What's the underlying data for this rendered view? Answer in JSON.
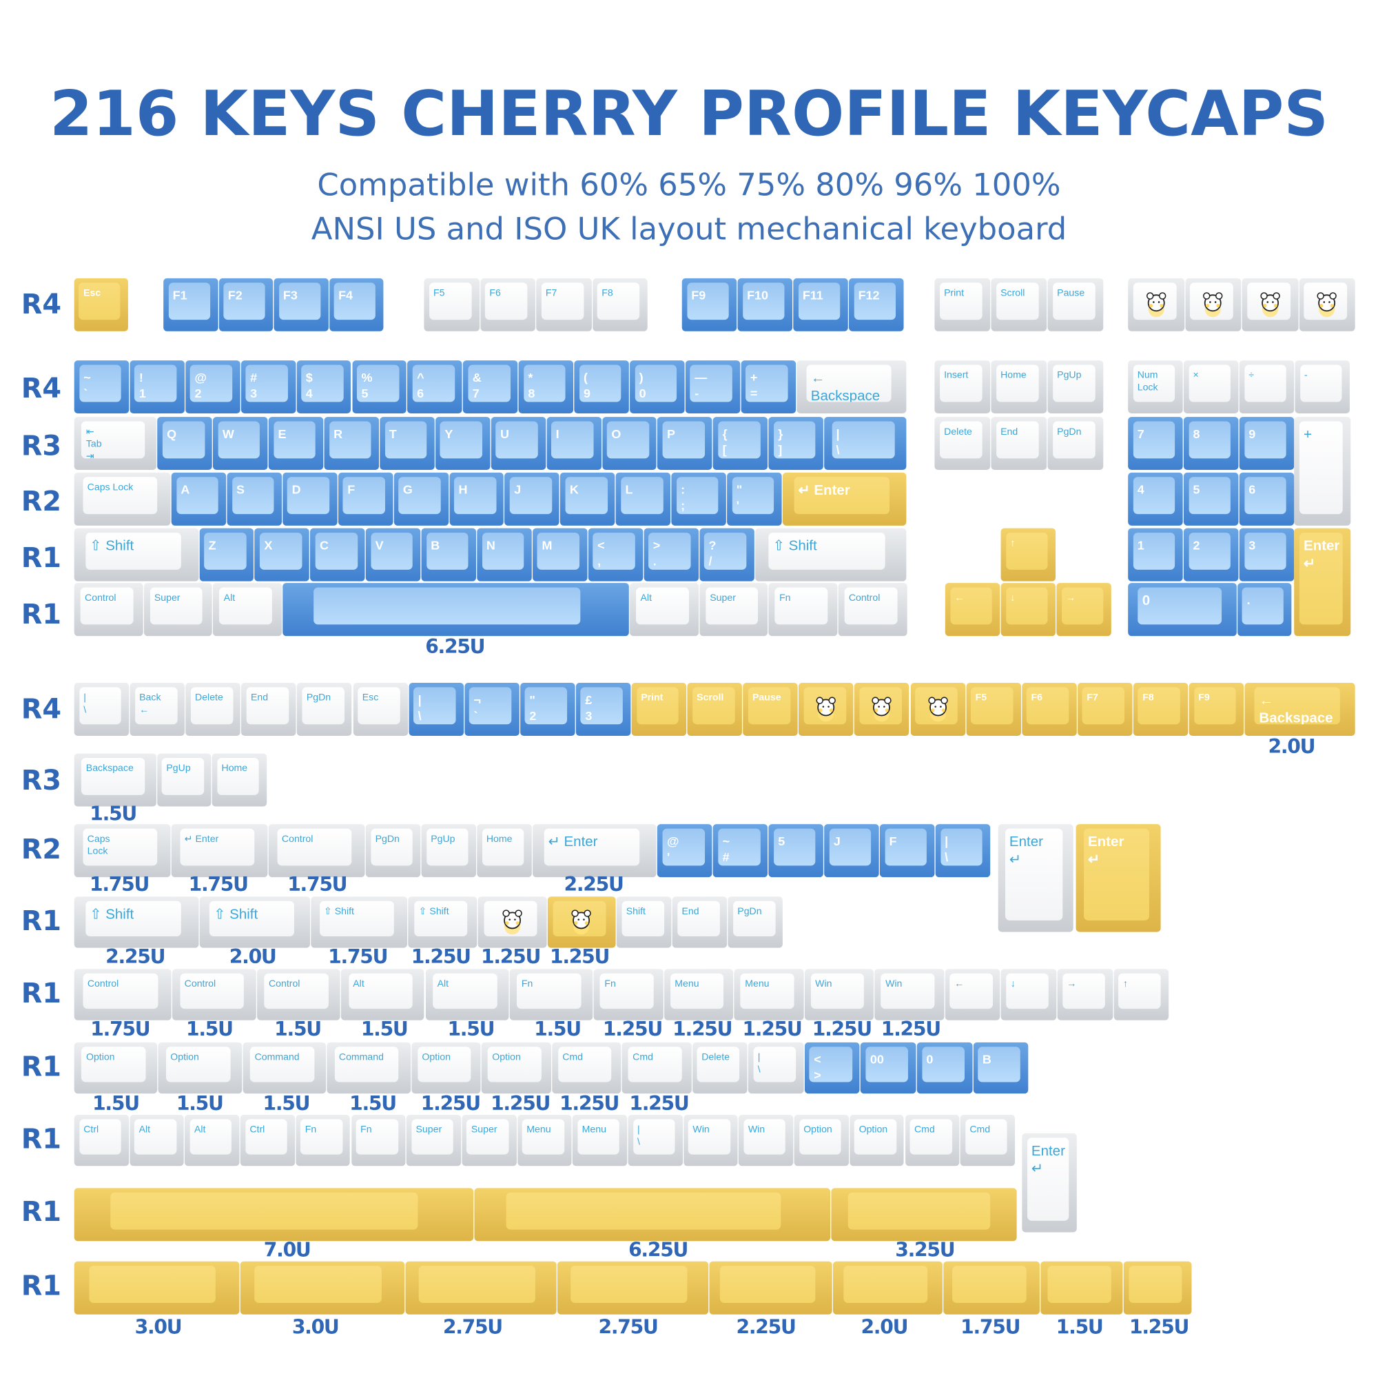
{
  "header": {
    "title": "216 KEYS CHERRY PROFILE KEYCAPS",
    "subtitle_line1": "Compatible with 60% 65% 75% 80% 96% 100%",
    "subtitle_line2": "ANSI US and ISO UK layout mechanical keyboard"
  },
  "colors": {
    "title": "#2f66b5",
    "blue_key": "#8fc0f0",
    "white_key": "#f4f5f7",
    "yellow_key": "#f4d466",
    "legend_on_white": "#3aa7da"
  },
  "row_labels": [
    "R4",
    "R4",
    "R3",
    "R2",
    "R1",
    "R1",
    "R4",
    "R3",
    "R2",
    "R1",
    "R1",
    "R1",
    "R1",
    "R1",
    "R1"
  ],
  "size_labels": [
    "6.25U",
    "2.0U",
    "1.5U",
    "1.75U",
    "1.75U",
    "1.75U",
    "2.25U",
    "2.25U",
    "2.0U",
    "1.75U",
    "1.25U",
    "1.25U",
    "1.25U",
    "1.75U",
    "1.5U",
    "1.5U",
    "1.5U",
    "1.5U",
    "1.5U",
    "1.25U",
    "1.25U",
    "1.25U",
    "1.25U",
    "1.25U",
    "1.5U",
    "1.5U",
    "1.5U",
    "1.5U",
    "1.25U",
    "1.25U",
    "1.25U",
    "1.25U",
    "7.0U",
    "6.25U",
    "3.25U",
    "3.0U",
    "3.0U",
    "2.75U",
    "2.75U",
    "2.25U",
    "2.0U",
    "1.75U",
    "1.5U",
    "1.25U"
  ],
  "groups": [
    [
      {
        "t": "Esc",
        "c": "y",
        "u": 1
      }
    ],
    [
      {
        "t": "F1",
        "c": "b",
        "u": 1
      },
      {
        "t": "F2",
        "c": "b",
        "u": 1
      },
      {
        "t": "F3",
        "c": "b",
        "u": 1
      },
      {
        "t": "F4",
        "c": "b",
        "u": 1
      }
    ],
    [
      {
        "t": "F5",
        "c": "w",
        "u": 1
      },
      {
        "t": "F6",
        "c": "w",
        "u": 1
      },
      {
        "t": "F7",
        "c": "w",
        "u": 1
      },
      {
        "t": "F8",
        "c": "w",
        "u": 1
      }
    ],
    [
      {
        "t": "F9",
        "c": "b",
        "u": 1
      },
      {
        "t": "F10",
        "c": "b",
        "u": 1
      },
      {
        "t": "F11",
        "c": "b",
        "u": 1
      },
      {
        "t": "F12",
        "c": "b",
        "u": 1
      }
    ],
    [
      {
        "t": "Print",
        "c": "w",
        "u": 1
      },
      {
        "t": "Scroll",
        "c": "w",
        "u": 1
      },
      {
        "t": "Pause",
        "c": "w",
        "u": 1
      }
    ],
    [
      {
        "t": "",
        "c": "w",
        "u": 1,
        "icon": "cartoon-mouse-scarf"
      },
      {
        "t": "",
        "c": "w",
        "u": 1,
        "icon": "cartoon-bunny"
      },
      {
        "t": "",
        "c": "w",
        "u": 1,
        "icon": "cartoon-cheese"
      },
      {
        "t": "",
        "c": "w",
        "u": 1,
        "icon": "cartoon-mouse-cheese"
      }
    ],
    [
      {
        "t": "~\n`",
        "c": "b",
        "u": 1
      },
      {
        "t": "!\n1",
        "c": "b",
        "u": 1
      },
      {
        "t": "@\n2",
        "c": "b",
        "u": 1
      },
      {
        "t": "#\n3",
        "c": "b",
        "u": 1
      },
      {
        "t": "$\n4",
        "c": "b",
        "u": 1
      },
      {
        "t": "%\n5",
        "c": "b",
        "u": 1
      },
      {
        "t": "^\n6",
        "c": "b",
        "u": 1
      },
      {
        "t": "&\n7",
        "c": "b",
        "u": 1
      },
      {
        "t": "*\n8",
        "c": "b",
        "u": 1
      },
      {
        "t": "(\n9",
        "c": "b",
        "u": 1
      },
      {
        "t": ")\n0",
        "c": "b",
        "u": 1
      },
      {
        "t": "—\n-",
        "c": "b",
        "u": 1
      },
      {
        "t": "+\n=",
        "c": "b",
        "u": 1
      },
      {
        "t": "← Backspace",
        "c": "w",
        "u": 2
      }
    ],
    [
      {
        "t": "Insert",
        "c": "w",
        "u": 1
      },
      {
        "t": "Home",
        "c": "w",
        "u": 1
      },
      {
        "t": "PgUp",
        "c": "w",
        "u": 1
      }
    ],
    [
      {
        "t": "Num\nLock",
        "c": "w",
        "u": 1
      },
      {
        "t": "×",
        "c": "w",
        "u": 1
      },
      {
        "t": "÷",
        "c": "w",
        "u": 1
      },
      {
        "t": "-",
        "c": "w",
        "u": 1
      }
    ],
    [
      {
        "t": "⇤\nTab\n⇥",
        "c": "w",
        "u": 1.5
      },
      {
        "t": "Q",
        "c": "b",
        "u": 1
      },
      {
        "t": "W",
        "c": "b",
        "u": 1
      },
      {
        "t": "E",
        "c": "b",
        "u": 1
      },
      {
        "t": "R",
        "c": "b",
        "u": 1
      },
      {
        "t": "T",
        "c": "b",
        "u": 1
      },
      {
        "t": "Y",
        "c": "b",
        "u": 1
      },
      {
        "t": "U",
        "c": "b",
        "u": 1
      },
      {
        "t": "I",
        "c": "b",
        "u": 1
      },
      {
        "t": "O",
        "c": "b",
        "u": 1
      },
      {
        "t": "P",
        "c": "b",
        "u": 1
      },
      {
        "t": "{\n[",
        "c": "b",
        "u": 1
      },
      {
        "t": "}\n]",
        "c": "b",
        "u": 1
      },
      {
        "t": "|\n\\",
        "c": "b",
        "u": 1.5
      }
    ],
    [
      {
        "t": "Delete",
        "c": "w",
        "u": 1
      },
      {
        "t": "End",
        "c": "w",
        "u": 1
      },
      {
        "t": "PgDn",
        "c": "w",
        "u": 1
      }
    ],
    [
      {
        "t": "7",
        "c": "b",
        "u": 1
      },
      {
        "t": "8",
        "c": "b",
        "u": 1
      },
      {
        "t": "9",
        "c": "b",
        "u": 1
      }
    ],
    [
      {
        "t": "+",
        "c": "w",
        "u": 1
      }
    ],
    [
      {
        "t": "Caps Lock",
        "c": "w",
        "u": 1.75
      },
      {
        "t": "A",
        "c": "b",
        "u": 1
      },
      {
        "t": "S",
        "c": "b",
        "u": 1
      },
      {
        "t": "D",
        "c": "b",
        "u": 1
      },
      {
        "t": "F",
        "c": "b",
        "u": 1
      },
      {
        "t": "G",
        "c": "b",
        "u": 1
      },
      {
        "t": "H",
        "c": "b",
        "u": 1
      },
      {
        "t": "J",
        "c": "b",
        "u": 1
      },
      {
        "t": "K",
        "c": "b",
        "u": 1
      },
      {
        "t": "L",
        "c": "b",
        "u": 1
      },
      {
        "t": ":\n;",
        "c": "b",
        "u": 1
      },
      {
        "t": "\"\n'",
        "c": "b",
        "u": 1
      },
      {
        "t": "↵ Enter",
        "c": "y",
        "u": 2.25
      }
    ],
    [
      {
        "t": "4",
        "c": "b",
        "u": 1
      },
      {
        "t": "5",
        "c": "b",
        "u": 1
      },
      {
        "t": "6",
        "c": "b",
        "u": 1
      }
    ],
    [
      {
        "t": "⇧ Shift",
        "c": "w",
        "u": 2.25
      },
      {
        "t": "Z",
        "c": "b",
        "u": 1
      },
      {
        "t": "X",
        "c": "b",
        "u": 1
      },
      {
        "t": "C",
        "c": "b",
        "u": 1
      },
      {
        "t": "V",
        "c": "b",
        "u": 1
      },
      {
        "t": "B",
        "c": "b",
        "u": 1
      },
      {
        "t": "N",
        "c": "b",
        "u": 1
      },
      {
        "t": "M",
        "c": "b",
        "u": 1
      },
      {
        "t": "<\n,",
        "c": "b",
        "u": 1
      },
      {
        "t": ">\n.",
        "c": "b",
        "u": 1
      },
      {
        "t": "?\n/",
        "c": "b",
        "u": 1
      },
      {
        "t": "⇧ Shift",
        "c": "w",
        "u": 2.75
      }
    ],
    [
      {
        "t": "↑",
        "c": "y",
        "u": 1
      }
    ],
    [
      {
        "t": "1",
        "c": "b",
        "u": 1
      },
      {
        "t": "2",
        "c": "b",
        "u": 1
      },
      {
        "t": "3",
        "c": "b",
        "u": 1
      }
    ],
    [
      {
        "t": "Enter\n↵",
        "c": "y",
        "u": 1
      }
    ],
    [
      {
        "t": "Control",
        "c": "w",
        "u": 1.25
      },
      {
        "t": "Super",
        "c": "w",
        "u": 1.25
      },
      {
        "t": "Alt",
        "c": "w",
        "u": 1.25
      },
      {
        "t": "",
        "c": "b",
        "u": 6.25
      },
      {
        "t": "Alt",
        "c": "w",
        "u": 1.25
      },
      {
        "t": "Super",
        "c": "w",
        "u": 1.25
      },
      {
        "t": "Fn",
        "c": "w",
        "u": 1.25
      },
      {
        "t": "Control",
        "c": "w",
        "u": 1.25
      }
    ],
    [
      {
        "t": "←",
        "c": "y",
        "u": 1
      },
      {
        "t": "↓",
        "c": "y",
        "u": 1
      },
      {
        "t": "→",
        "c": "y",
        "u": 1
      }
    ],
    [
      {
        "t": "0",
        "c": "b",
        "u": 2
      },
      {
        "t": ".",
        "c": "b",
        "u": 1
      }
    ],
    [
      {
        "t": "|\n\\",
        "c": "w",
        "u": 1
      },
      {
        "t": "Back\n←",
        "c": "w",
        "u": 1
      },
      {
        "t": "Delete",
        "c": "w",
        "u": 1
      },
      {
        "t": "End",
        "c": "w",
        "u": 1
      },
      {
        "t": "PgDn",
        "c": "w",
        "u": 1
      },
      {
        "t": "Esc",
        "c": "w",
        "u": 1
      },
      {
        "t": "|\n\\",
        "c": "b",
        "u": 1
      },
      {
        "t": "¬\n`",
        "c": "b",
        "u": 1
      },
      {
        "t": "\"\n2",
        "c": "b",
        "u": 1
      },
      {
        "t": "£\n3",
        "c": "b",
        "u": 1
      },
      {
        "t": "Print",
        "c": "y",
        "u": 1
      },
      {
        "t": "Scroll",
        "c": "y",
        "u": 1
      },
      {
        "t": "Pause",
        "c": "y",
        "u": 1
      },
      {
        "t": "",
        "c": "y",
        "u": 1,
        "icon": "cartoon-cookie"
      },
      {
        "t": "",
        "c": "y",
        "u": 1,
        "icon": "cartoon-sparkles"
      },
      {
        "t": "",
        "c": "y",
        "u": 1,
        "icon": "cartoon-wrench"
      },
      {
        "t": "F5",
        "c": "y",
        "u": 1
      },
      {
        "t": "F6",
        "c": "y",
        "u": 1
      },
      {
        "t": "F7",
        "c": "y",
        "u": 1
      },
      {
        "t": "F8",
        "c": "y",
        "u": 1
      },
      {
        "t": "F9",
        "c": "y",
        "u": 1
      },
      {
        "t": "← Backspace",
        "c": "y",
        "u": 2
      }
    ],
    [
      {
        "t": "Backspace",
        "c": "w",
        "u": 1.5
      },
      {
        "t": "PgUp",
        "c": "w",
        "u": 1
      },
      {
        "t": "Home",
        "c": "w",
        "u": 1
      }
    ],
    [
      {
        "t": "Caps\nLock",
        "c": "w",
        "u": 1.75
      },
      {
        "t": "↵ Enter",
        "c": "w",
        "u": 1.75
      },
      {
        "t": "Control",
        "c": "w",
        "u": 1.75
      },
      {
        "t": "PgDn",
        "c": "w",
        "u": 1
      },
      {
        "t": "PgUp",
        "c": "w",
        "u": 1
      },
      {
        "t": "Home",
        "c": "w",
        "u": 1
      },
      {
        "t": "↵ Enter",
        "c": "w",
        "u": 2.25
      },
      {
        "t": "@\n'",
        "c": "b",
        "u": 1
      },
      {
        "t": "~\n#",
        "c": "b",
        "u": 1
      },
      {
        "t": "5",
        "c": "b",
        "u": 1
      },
      {
        "t": "J",
        "c": "b",
        "u": 1
      },
      {
        "t": "F",
        "c": "b",
        "u": 1
      },
      {
        "t": "|\n\\",
        "c": "b",
        "u": 1
      }
    ],
    [
      {
        "t": "Enter\n↵",
        "c": "w",
        "u": 1
      }
    ],
    [
      {
        "t": "Enter\n↵",
        "c": "y",
        "u": 1
      }
    ],
    [
      {
        "t": "⇧ Shift",
        "c": "w",
        "u": 2.25
      },
      {
        "t": "⇧ Shift",
        "c": "w",
        "u": 2
      },
      {
        "t": "⇧ Shift",
        "c": "w",
        "u": 1.75
      },
      {
        "t": "⇧ Shift",
        "c": "w",
        "u": 1.25
      },
      {
        "t": "",
        "c": "w",
        "u": 1.25,
        "icon": "cartoon-bear-cake"
      },
      {
        "t": "",
        "c": "y",
        "u": 1.25,
        "icon": "cartoon-bunny-cake"
      },
      {
        "t": "Shift",
        "c": "w",
        "u": 1
      },
      {
        "t": "End",
        "c": "w",
        "u": 1
      },
      {
        "t": "PgDn",
        "c": "w",
        "u": 1
      }
    ],
    [
      {
        "t": "Control",
        "c": "w",
        "u": 1.75
      },
      {
        "t": "Control",
        "c": "w",
        "u": 1.5
      },
      {
        "t": "Control",
        "c": "w",
        "u": 1.5
      },
      {
        "t": "Alt",
        "c": "w",
        "u": 1.5
      },
      {
        "t": "Alt",
        "c": "w",
        "u": 1.5
      },
      {
        "t": "Fn",
        "c": "w",
        "u": 1.5
      },
      {
        "t": "Fn",
        "c": "w",
        "u": 1.25
      },
      {
        "t": "Menu",
        "c": "w",
        "u": 1.25
      },
      {
        "t": "Menu",
        "c": "w",
        "u": 1.25
      },
      {
        "t": "Win",
        "c": "w",
        "u": 1.25
      },
      {
        "t": "Win",
        "c": "w",
        "u": 1.25
      },
      {
        "t": "←",
        "c": "w",
        "u": 1
      },
      {
        "t": "↓",
        "c": "w",
        "u": 1
      },
      {
        "t": "→",
        "c": "w",
        "u": 1
      },
      {
        "t": "↑",
        "c": "w",
        "u": 1
      }
    ],
    [
      {
        "t": "Option",
        "c": "w",
        "u": 1.5
      },
      {
        "t": "Option",
        "c": "w",
        "u": 1.5
      },
      {
        "t": "Command",
        "c": "w",
        "u": 1.5
      },
      {
        "t": "Command",
        "c": "w",
        "u": 1.5
      },
      {
        "t": "Option",
        "c": "w",
        "u": 1.25
      },
      {
        "t": "Option",
        "c": "w",
        "u": 1.25
      },
      {
        "t": "Cmd",
        "c": "w",
        "u": 1.25
      },
      {
        "t": "Cmd",
        "c": "w",
        "u": 1.25
      },
      {
        "t": "Delete",
        "c": "w",
        "u": 1
      },
      {
        "t": "|\n\\",
        "c": "w",
        "u": 1
      },
      {
        "t": "<\n>",
        "c": "b",
        "u": 1
      },
      {
        "t": "00",
        "c": "b",
        "u": 1
      },
      {
        "t": "0",
        "c": "b",
        "u": 1
      },
      {
        "t": "B",
        "c": "b",
        "u": 1
      }
    ],
    [
      {
        "t": "Ctrl",
        "c": "w",
        "u": 1
      },
      {
        "t": "Alt",
        "c": "w",
        "u": 1
      },
      {
        "t": "Alt",
        "c": "w",
        "u": 1
      },
      {
        "t": "Ctrl",
        "c": "w",
        "u": 1
      },
      {
        "t": "Fn",
        "c": "w",
        "u": 1
      },
      {
        "t": "Fn",
        "c": "w",
        "u": 1
      },
      {
        "t": "Super",
        "c": "w",
        "u": 1
      },
      {
        "t": "Super",
        "c": "w",
        "u": 1
      },
      {
        "t": "Menu",
        "c": "w",
        "u": 1
      },
      {
        "t": "Menu",
        "c": "w",
        "u": 1
      },
      {
        "t": "|\n\\",
        "c": "w",
        "u": 1
      },
      {
        "t": "Win",
        "c": "w",
        "u": 1
      },
      {
        "t": "Win",
        "c": "w",
        "u": 1
      },
      {
        "t": "Option",
        "c": "w",
        "u": 1
      },
      {
        "t": "Option",
        "c": "w",
        "u": 1
      },
      {
        "t": "Cmd",
        "c": "w",
        "u": 1
      },
      {
        "t": "Cmd",
        "c": "w",
        "u": 1
      }
    ],
    [
      {
        "t": "Enter\n↵",
        "c": "w",
        "u": 1
      }
    ],
    [
      {
        "t": "",
        "c": "y",
        "u": 7
      },
      {
        "t": "",
        "c": "y",
        "u": 6.25
      },
      {
        "t": "",
        "c": "y",
        "u": 3.25
      }
    ],
    [
      {
        "t": "",
        "c": "y",
        "u": 3
      },
      {
        "t": "",
        "c": "y",
        "u": 3
      },
      {
        "t": "",
        "c": "y",
        "u": 2.75
      },
      {
        "t": "",
        "c": "y",
        "u": 2.75
      },
      {
        "t": "",
        "c": "y",
        "u": 2.25
      },
      {
        "t": "",
        "c": "y",
        "u": 2
      },
      {
        "t": "",
        "c": "y",
        "u": 1.75
      },
      {
        "t": "",
        "c": "y",
        "u": 1.5
      },
      {
        "t": "",
        "c": "y",
        "u": 1.25
      }
    ]
  ]
}
